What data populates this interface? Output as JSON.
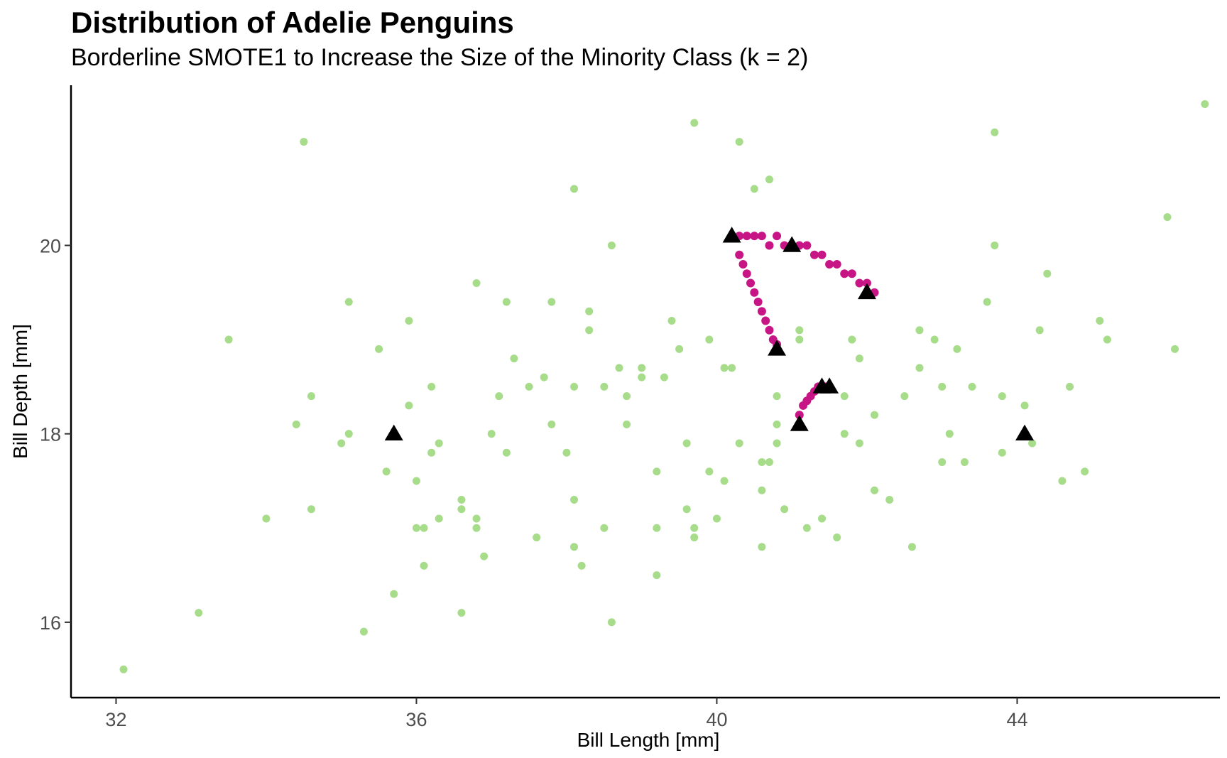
{
  "chart_data": {
    "type": "scatter",
    "title": "Distribution of Adelie Penguins",
    "subtitle": "Borderline SMOTE1 to Increase the Size of the Minority Class (k = 2)",
    "xlabel": "Bill Length [mm]",
    "ylabel": "Bill Depth [mm]",
    "xlim": [
      31.4,
      46.7
    ],
    "ylim": [
      15.2,
      21.7
    ],
    "xticks": [
      32,
      36,
      40,
      44
    ],
    "yticks": [
      16,
      18,
      20
    ],
    "grid": false,
    "legend": "none",
    "series": [
      {
        "marker": "circle",
        "color": "#a6dc8a",
        "points": [
          [
            32.1,
            15.5
          ],
          [
            33.1,
            16.1
          ],
          [
            33.5,
            19.0
          ],
          [
            34.0,
            17.1
          ],
          [
            34.4,
            18.1
          ],
          [
            34.5,
            21.1
          ],
          [
            34.6,
            17.2
          ],
          [
            34.6,
            18.4
          ],
          [
            35.0,
            17.9
          ],
          [
            35.1,
            18.0
          ],
          [
            35.1,
            19.4
          ],
          [
            35.3,
            15.9
          ],
          [
            35.5,
            18.9
          ],
          [
            35.6,
            17.6
          ],
          [
            35.7,
            16.3
          ],
          [
            35.9,
            18.3
          ],
          [
            35.9,
            19.2
          ],
          [
            36.0,
            17.5
          ],
          [
            36.0,
            17.0
          ],
          [
            36.1,
            17.0
          ],
          [
            36.1,
            16.6
          ],
          [
            36.2,
            18.5
          ],
          [
            36.2,
            17.8
          ],
          [
            36.3,
            17.1
          ],
          [
            36.3,
            17.9
          ],
          [
            36.6,
            17.3
          ],
          [
            36.6,
            16.1
          ],
          [
            36.6,
            17.2
          ],
          [
            36.8,
            19.6
          ],
          [
            36.8,
            17.1
          ],
          [
            36.8,
            17.0
          ],
          [
            36.9,
            16.7
          ],
          [
            37.0,
            18.0
          ],
          [
            37.1,
            18.4
          ],
          [
            37.2,
            17.8
          ],
          [
            37.2,
            19.4
          ],
          [
            37.3,
            18.8
          ],
          [
            37.5,
            18.5
          ],
          [
            37.6,
            16.9
          ],
          [
            37.7,
            18.6
          ],
          [
            37.8,
            19.4
          ],
          [
            37.8,
            18.1
          ],
          [
            38.0,
            17.8
          ],
          [
            38.1,
            16.8
          ],
          [
            38.1,
            17.3
          ],
          [
            38.1,
            20.6
          ],
          [
            38.1,
            18.5
          ],
          [
            38.2,
            16.6
          ],
          [
            38.3,
            19.3
          ],
          [
            38.3,
            19.1
          ],
          [
            38.5,
            17.0
          ],
          [
            38.5,
            18.5
          ],
          [
            38.6,
            16.0
          ],
          [
            38.6,
            20.0
          ],
          [
            38.7,
            18.7
          ],
          [
            38.8,
            18.4
          ],
          [
            38.8,
            18.1
          ],
          [
            39.0,
            18.7
          ],
          [
            39.0,
            18.6
          ],
          [
            39.2,
            17.0
          ],
          [
            39.2,
            17.6
          ],
          [
            39.2,
            16.5
          ],
          [
            39.3,
            18.6
          ],
          [
            39.4,
            19.2
          ],
          [
            39.5,
            18.9
          ],
          [
            39.6,
            17.9
          ],
          [
            39.6,
            17.2
          ],
          [
            39.7,
            21.3
          ],
          [
            39.7,
            16.9
          ],
          [
            39.7,
            17.0
          ],
          [
            39.9,
            19.0
          ],
          [
            39.9,
            17.6
          ],
          [
            40.0,
            17.1
          ],
          [
            40.1,
            18.7
          ],
          [
            40.1,
            17.5
          ],
          [
            40.2,
            18.7
          ],
          [
            40.3,
            17.9
          ],
          [
            40.3,
            21.1
          ],
          [
            40.4,
            19.7
          ],
          [
            40.5,
            20.6
          ],
          [
            40.6,
            17.4
          ],
          [
            40.6,
            16.8
          ],
          [
            40.6,
            17.7
          ],
          [
            40.7,
            20.7
          ],
          [
            40.7,
            17.7
          ],
          [
            40.8,
            17.9
          ],
          [
            40.8,
            18.9
          ],
          [
            40.8,
            18.4
          ],
          [
            40.8,
            18.1
          ],
          [
            40.9,
            17.2
          ],
          [
            41.1,
            19.1
          ],
          [
            41.1,
            19.0
          ],
          [
            41.2,
            17.0
          ],
          [
            41.4,
            17.1
          ],
          [
            41.5,
            18.5
          ],
          [
            41.6,
            16.9
          ],
          [
            41.7,
            18.0
          ],
          [
            41.7,
            18.4
          ],
          [
            41.8,
            19.0
          ],
          [
            41.9,
            17.9
          ],
          [
            41.9,
            18.8
          ],
          [
            42.1,
            17.4
          ],
          [
            42.1,
            18.2
          ],
          [
            42.3,
            17.3
          ],
          [
            42.5,
            18.4
          ],
          [
            42.6,
            16.8
          ],
          [
            42.7,
            19.1
          ],
          [
            42.7,
            18.7
          ],
          [
            42.9,
            19.0
          ],
          [
            43.0,
            18.5
          ],
          [
            43.0,
            17.7
          ],
          [
            43.1,
            18.0
          ],
          [
            43.2,
            18.9
          ],
          [
            43.3,
            17.7
          ],
          [
            43.4,
            18.5
          ],
          [
            43.6,
            19.4
          ],
          [
            43.7,
            20.0
          ],
          [
            43.7,
            21.2
          ],
          [
            43.8,
            17.8
          ],
          [
            43.8,
            18.4
          ],
          [
            44.1,
            18.3
          ],
          [
            44.2,
            17.9
          ],
          [
            44.3,
            19.1
          ],
          [
            44.4,
            19.7
          ],
          [
            44.6,
            17.5
          ],
          [
            44.7,
            18.5
          ],
          [
            44.9,
            17.6
          ],
          [
            45.1,
            19.2
          ],
          [
            45.2,
            19.0
          ],
          [
            46.0,
            20.3
          ],
          [
            46.1,
            18.9
          ],
          [
            46.5,
            21.5
          ]
        ]
      },
      {
        "marker": "circle",
        "color": "#c71585",
        "points": [
          [
            40.3,
            20.1
          ],
          [
            40.4,
            20.1
          ],
          [
            40.5,
            20.1
          ],
          [
            40.6,
            20.1
          ],
          [
            40.7,
            20.0
          ],
          [
            40.8,
            20.1
          ],
          [
            40.9,
            20.0
          ],
          [
            41.0,
            20.0
          ],
          [
            41.1,
            20.0
          ],
          [
            41.2,
            20.0
          ],
          [
            41.3,
            19.9
          ],
          [
            41.4,
            19.9
          ],
          [
            41.5,
            19.8
          ],
          [
            41.6,
            19.8
          ],
          [
            41.7,
            19.7
          ],
          [
            41.8,
            19.7
          ],
          [
            41.9,
            19.6
          ],
          [
            42.0,
            19.6
          ],
          [
            42.1,
            19.5
          ],
          [
            40.3,
            19.9
          ],
          [
            40.35,
            19.8
          ],
          [
            40.4,
            19.7
          ],
          [
            40.45,
            19.6
          ],
          [
            40.5,
            19.5
          ],
          [
            40.55,
            19.4
          ],
          [
            40.6,
            19.3
          ],
          [
            40.65,
            19.2
          ],
          [
            40.7,
            19.1
          ],
          [
            40.75,
            19.0
          ],
          [
            40.8,
            18.95
          ],
          [
            41.1,
            18.2
          ],
          [
            41.15,
            18.3
          ],
          [
            41.2,
            18.35
          ],
          [
            41.25,
            18.4
          ],
          [
            41.3,
            18.45
          ],
          [
            41.35,
            18.5
          ],
          [
            41.4,
            18.5
          ],
          [
            41.45,
            18.5
          ]
        ]
      },
      {
        "marker": "triangle",
        "color": "#000000",
        "points": [
          [
            35.7,
            18.0
          ],
          [
            40.2,
            20.1
          ],
          [
            41.0,
            20.0
          ],
          [
            40.8,
            18.9
          ],
          [
            41.4,
            18.5
          ],
          [
            41.5,
            18.5
          ],
          [
            41.1,
            18.1
          ],
          [
            42.0,
            19.5
          ],
          [
            44.1,
            18.0
          ]
        ]
      }
    ]
  }
}
